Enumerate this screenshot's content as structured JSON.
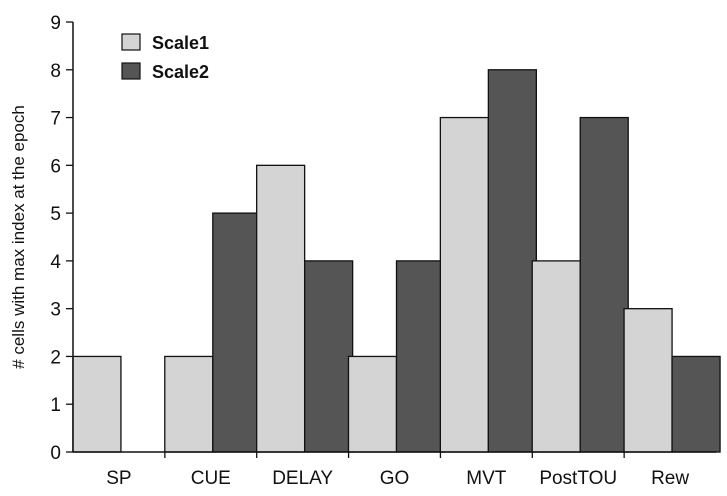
{
  "chart_data": {
    "type": "bar",
    "ylabel": "# cells with max index at the epoch",
    "xlabel": "",
    "title": "",
    "ylim": [
      0,
      9
    ],
    "yticks": [
      0,
      1,
      2,
      3,
      4,
      5,
      6,
      7,
      8,
      9
    ],
    "categories": [
      "SP",
      "CUE",
      "DELAY",
      "GO",
      "MVT",
      "PostTOU",
      "Rew"
    ],
    "series": [
      {
        "name": "Scale1",
        "color": "#d4d4d4",
        "values": [
          2,
          2,
          6,
          2,
          7,
          4,
          3
        ]
      },
      {
        "name": "Scale2",
        "color": "#555555",
        "values": [
          0,
          5,
          4,
          4,
          8,
          7,
          2
        ]
      }
    ],
    "legend_position": "top-left",
    "grid": false
  }
}
